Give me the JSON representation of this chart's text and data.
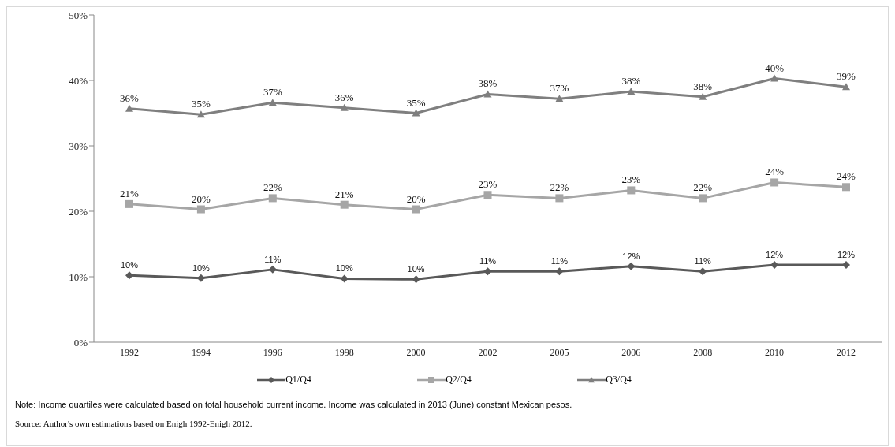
{
  "chart_data": {
    "type": "line",
    "categories": [
      "1992",
      "1994",
      "1996",
      "1998",
      "2000",
      "2002",
      "2005",
      "2006",
      "2008",
      "2010",
      "2012"
    ],
    "ylim": [
      0,
      50
    ],
    "yticks": [
      {
        "value": 0,
        "label": "0%"
      },
      {
        "value": 10,
        "label": "10%"
      },
      {
        "value": 20,
        "label": "20%"
      },
      {
        "value": 30,
        "label": "30%"
      },
      {
        "value": 40,
        "label": "40%"
      },
      {
        "value": 50,
        "label": "50%"
      }
    ],
    "grid": false,
    "legend": "bottom",
    "line_style": "solid",
    "series": [
      {
        "name": "Q1/Q4",
        "color": "#595959",
        "marker": "diamond",
        "values": [
          10.2,
          9.8,
          11.1,
          9.7,
          9.6,
          10.8,
          10.8,
          11.6,
          10.8,
          11.8,
          11.8
        ],
        "value_labels": [
          "10%",
          "10%",
          "11%",
          "10%",
          "10%",
          "11%",
          "11%",
          "12%",
          "11%",
          "12%",
          "12%"
        ]
      },
      {
        "name": "Q2/Q4",
        "color": "#a6a6a6",
        "marker": "square",
        "values": [
          21.1,
          20.3,
          22.0,
          21.0,
          20.3,
          22.5,
          22.0,
          23.2,
          22.0,
          24.4,
          23.7
        ],
        "value_labels": [
          "21%",
          "20%",
          "22%",
          "21%",
          "20%",
          "23%",
          "22%",
          "23%",
          "22%",
          "24%",
          "24%"
        ]
      },
      {
        "name": "Q3/Q4",
        "color": "#7f7f7f",
        "marker": "triangle",
        "values": [
          35.7,
          34.8,
          36.6,
          35.8,
          35.0,
          37.9,
          37.2,
          38.3,
          37.5,
          40.3,
          39.0
        ],
        "value_labels": [
          "36%",
          "35%",
          "37%",
          "36%",
          "35%",
          "38%",
          "37%",
          "38%",
          "38%",
          "40%",
          "39%"
        ]
      }
    ],
    "annotations": [
      "Note: Income quartiles were calculated based on total household current income. Income was calculated in 2013 (June) constant Mexican pesos.",
      "Source: Author's own estimations based on Enigh 1992-Enigh 2012."
    ]
  }
}
